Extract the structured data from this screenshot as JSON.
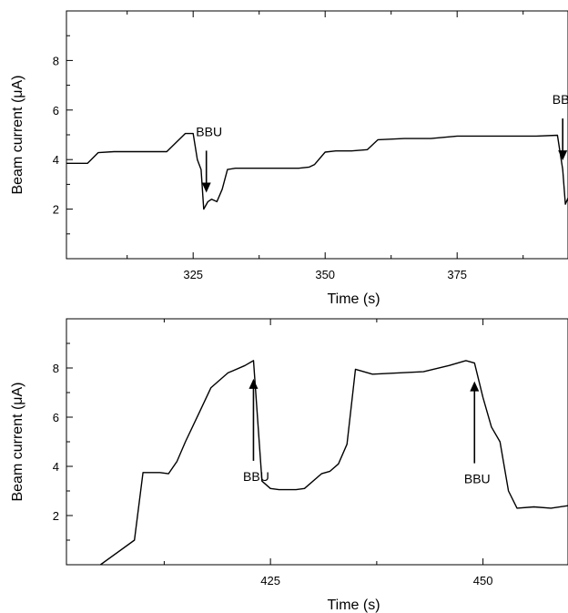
{
  "chart_data": [
    {
      "type": "line",
      "title": "",
      "xlabel": "Time (s)",
      "ylabel": "Beam current (μA)",
      "xlim": [
        301,
        396
      ],
      "ylim": [
        0,
        10
      ],
      "xticks": [
        325,
        350,
        375
      ],
      "yticks": [
        2,
        4,
        6,
        8
      ],
      "grid": false,
      "annotations": [
        {
          "text": "BBU",
          "x": 327.5,
          "direction": "down"
        },
        {
          "text": "BBU",
          "x": 395.0,
          "direction": "down"
        }
      ],
      "x": [
        301,
        304,
        305,
        307,
        310,
        315,
        320,
        323.5,
        325,
        325.8,
        326.5,
        327,
        327.8,
        328.5,
        329.5,
        330.5,
        331.5,
        333,
        335,
        340,
        345,
        347,
        348,
        350,
        352,
        355,
        358,
        360,
        365,
        370,
        375,
        380,
        385,
        390,
        394,
        395,
        395.5,
        396
      ],
      "values": [
        3.85,
        3.85,
        3.85,
        4.28,
        4.32,
        4.32,
        4.32,
        5.05,
        5.05,
        4.0,
        3.6,
        2.0,
        2.3,
        2.4,
        2.3,
        2.8,
        3.6,
        3.65,
        3.65,
        3.65,
        3.65,
        3.7,
        3.8,
        4.3,
        4.35,
        4.35,
        4.4,
        4.8,
        4.85,
        4.85,
        4.95,
        4.95,
        4.95,
        4.95,
        4.98,
        3.6,
        2.2,
        2.45
      ]
    },
    {
      "type": "line",
      "title": "",
      "xlabel": "Time (s)",
      "ylabel": "Beam current (μA)",
      "xlim": [
        401,
        460
      ],
      "ylim": [
        0,
        10
      ],
      "xticks": [
        425,
        450
      ],
      "yticks": [
        2,
        4,
        6,
        8
      ],
      "grid": false,
      "annotations": [
        {
          "text": "BBU",
          "x": 423,
          "direction": "up"
        },
        {
          "text": "BBU",
          "x": 449,
          "direction": "up"
        }
      ],
      "x": [
        405,
        409,
        410,
        412,
        413,
        414,
        415,
        416.5,
        418,
        420,
        422,
        423,
        424,
        425,
        426,
        428,
        429,
        431,
        432,
        433,
        434,
        435,
        437,
        440,
        443,
        446,
        448,
        449,
        450,
        451,
        452,
        453,
        454,
        456,
        458,
        460
      ],
      "values": [
        0.0,
        1.0,
        3.75,
        3.75,
        3.7,
        4.2,
        5.0,
        6.1,
        7.2,
        7.8,
        8.1,
        8.3,
        3.4,
        3.1,
        3.05,
        3.05,
        3.1,
        3.7,
        3.8,
        4.1,
        4.9,
        7.95,
        7.75,
        7.8,
        7.85,
        8.1,
        8.3,
        8.2,
        6.8,
        5.6,
        5.0,
        3.0,
        2.3,
        2.35,
        2.3,
        2.4
      ]
    }
  ]
}
